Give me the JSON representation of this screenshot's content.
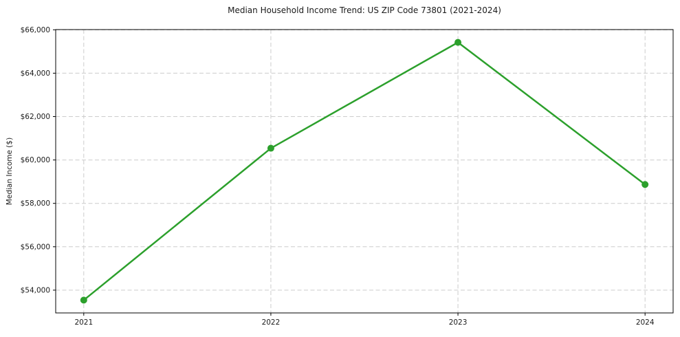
{
  "chart_data": {
    "type": "line",
    "title": "Median Household Income Trend: US ZIP Code 73801 (2021-2024)",
    "xlabel": "",
    "ylabel": "Median Income ($)",
    "x": [
      2021,
      2022,
      2023,
      2024
    ],
    "series": [
      {
        "name": "Median Household Income",
        "values": [
          53540,
          60540,
          65420,
          58870
        ]
      }
    ],
    "xlim": [
      2020.85,
      2024.15
    ],
    "ylim": [
      52950,
      66010
    ],
    "yticks": [
      54000,
      56000,
      58000,
      60000,
      62000,
      64000,
      66000
    ],
    "xticks": [
      2021,
      2022,
      2023,
      2024
    ],
    "ytick_prefix": "$",
    "grid": true,
    "grid_style": "dashed",
    "legend": "none",
    "colors": {
      "line": "#2ca02c",
      "marker": "#2ca02c",
      "grid": "#cccccc",
      "axis": "#000000",
      "text": "#1a1a1a",
      "background": "#ffffff"
    }
  }
}
